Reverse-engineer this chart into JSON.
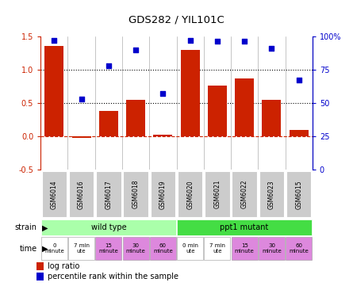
{
  "title": "GDS282 / YIL101C",
  "samples": [
    "GSM6014",
    "GSM6016",
    "GSM6017",
    "GSM6018",
    "GSM6019",
    "GSM6020",
    "GSM6021",
    "GSM6022",
    "GSM6023",
    "GSM6015"
  ],
  "log_ratio": [
    1.35,
    -0.02,
    0.38,
    0.55,
    0.02,
    1.3,
    0.76,
    0.87,
    0.55,
    0.1
  ],
  "percentile": [
    97,
    53,
    78,
    90,
    57,
    97,
    96,
    96,
    91,
    67
  ],
  "bar_color": "#cc2200",
  "dot_color": "#0000cc",
  "ylim_left": [
    -0.5,
    1.5
  ],
  "ylim_right": [
    0,
    100
  ],
  "yticks_left": [
    -0.5,
    0.0,
    0.5,
    1.0,
    1.5
  ],
  "yticks_right": [
    0,
    25,
    50,
    75,
    100
  ],
  "hlines": [
    0.5,
    1.0
  ],
  "hline_zero_color": "#cc2200",
  "tick_color_left": "#cc2200",
  "tick_color_right": "#0000cc",
  "sample_box_color": "#cccccc",
  "strain_groups": [
    {
      "label": "wild type",
      "start": 0,
      "end": 5,
      "color": "#aaffaa"
    },
    {
      "label": "ppt1 mutant",
      "start": 5,
      "end": 10,
      "color": "#44dd44"
    }
  ],
  "time_labels": [
    {
      "text": "0\nminute",
      "bg": "#ffffff"
    },
    {
      "text": "7 min\nute",
      "bg": "#ffffff"
    },
    {
      "text": "15\nminute",
      "bg": "#dd88dd"
    },
    {
      "text": "30\nminute",
      "bg": "#dd88dd"
    },
    {
      "text": "60\nminute",
      "bg": "#dd88dd"
    },
    {
      "text": "0 min\nute",
      "bg": "#ffffff"
    },
    {
      "text": "7 min\nute",
      "bg": "#ffffff"
    },
    {
      "text": "15\nminute",
      "bg": "#dd88dd"
    },
    {
      "text": "30\nminute",
      "bg": "#dd88dd"
    },
    {
      "text": "60\nminute",
      "bg": "#dd88dd"
    }
  ],
  "legend_items": [
    {
      "color": "#cc2200",
      "label": "log ratio"
    },
    {
      "color": "#0000cc",
      "label": "percentile rank within the sample"
    }
  ]
}
